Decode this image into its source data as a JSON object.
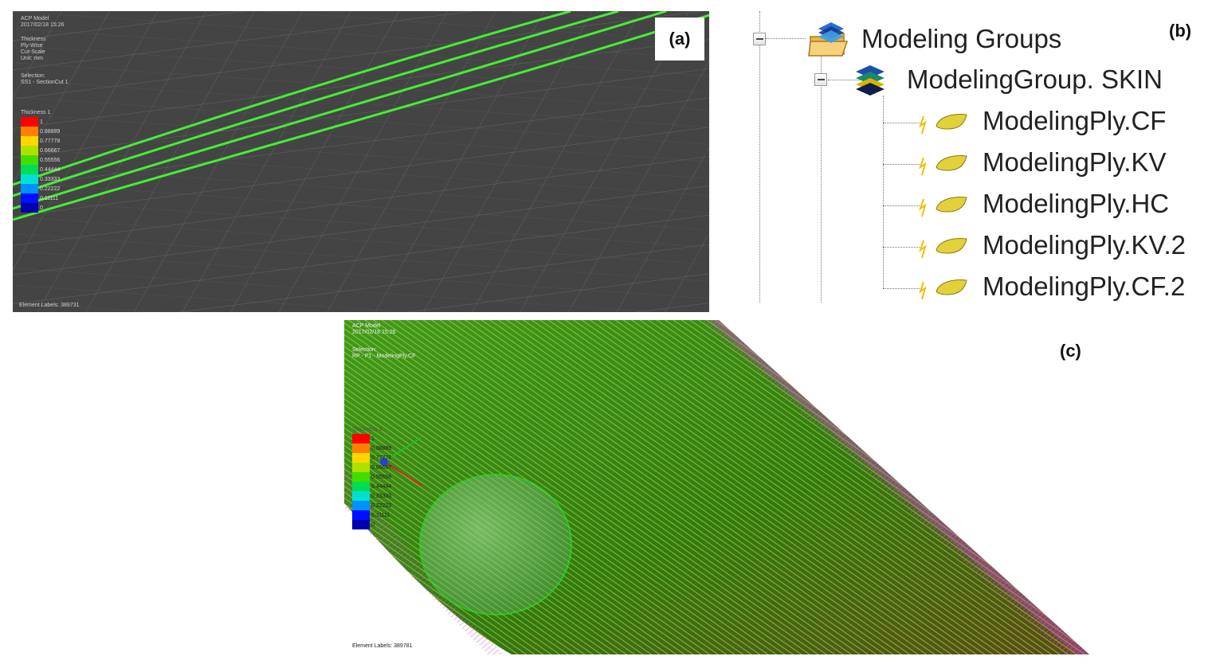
{
  "panel_a": {
    "label": "(a)",
    "overlay_header": [
      "ACP Model",
      "2017/02/18 15:26"
    ],
    "overlay_info": [
      "Thickness",
      "Ply-Wise",
      "Cut-Scale",
      "Unit: mm"
    ],
    "overlay_selection": [
      "Selection:",
      "SS1 - SectionCut 1"
    ],
    "legend_title": "Thickness 1",
    "legend": [
      {
        "color": "#ff0000",
        "label": "1"
      },
      {
        "color": "#ff7f00",
        "label": "0.88889"
      },
      {
        "color": "#ffd700",
        "label": "0.77778"
      },
      {
        "color": "#b0e000",
        "label": "0.66667"
      },
      {
        "color": "#44dd00",
        "label": "0.55556"
      },
      {
        "color": "#00dd55",
        "label": "0.44444"
      },
      {
        "color": "#00e0d0",
        "label": "0.33333"
      },
      {
        "color": "#0090ff",
        "label": "0.22222"
      },
      {
        "color": "#0010ff",
        "label": "0.11111"
      },
      {
        "color": "#0000aa",
        "label": "0"
      }
    ],
    "footer": "Element Labels: 389731",
    "colors": {
      "background": "#454545",
      "mesh": "#6f6f6f",
      "section_lines": "#44ee33"
    }
  },
  "panel_b": {
    "label": "(b)",
    "root": {
      "label": "Modeling Groups",
      "icon": "folder-layers-icon"
    },
    "group": {
      "label": "ModelingGroup. SKIN",
      "icon": "layers-stack-icon"
    },
    "plies": [
      {
        "label": "ModelingPly.CF",
        "icon": "modeling-ply-icon"
      },
      {
        "label": "ModelingPly.KV",
        "icon": "modeling-ply-icon"
      },
      {
        "label": "ModelingPly.HC",
        "icon": "modeling-ply-icon"
      },
      {
        "label": "ModelingPly.KV.2",
        "icon": "modeling-ply-icon"
      },
      {
        "label": "ModelingPly.CF.2",
        "icon": "modeling-ply-icon"
      }
    ]
  },
  "panel_c": {
    "label": "(c)",
    "overlay_header": [
      "ACP Model",
      "2017/02/18 15:26"
    ],
    "overlay_selection": [
      "Selection:",
      "RP - P1 - ModelingPly.CF"
    ],
    "legend_title": "Thickness 1",
    "legend": [
      {
        "color": "#ff0000",
        "label": "1"
      },
      {
        "color": "#ff7f00",
        "label": "0.88889"
      },
      {
        "color": "#ffd700",
        "label": "0.77778"
      },
      {
        "color": "#b0e000",
        "label": "0.66667"
      },
      {
        "color": "#44dd00",
        "label": "0.55556"
      },
      {
        "color": "#00dd55",
        "label": "0.44444"
      },
      {
        "color": "#00e0d0",
        "label": "0.33333"
      },
      {
        "color": "#0090ff",
        "label": "0.22222"
      },
      {
        "color": "#0010ff",
        "label": "0.11111"
      },
      {
        "color": "#0000aa",
        "label": "0"
      }
    ],
    "footer": "Element Labels: 389781",
    "colors": {
      "surface": "#3f8f1e",
      "arrows": "#c4e000",
      "normals": "#e040e0"
    }
  }
}
